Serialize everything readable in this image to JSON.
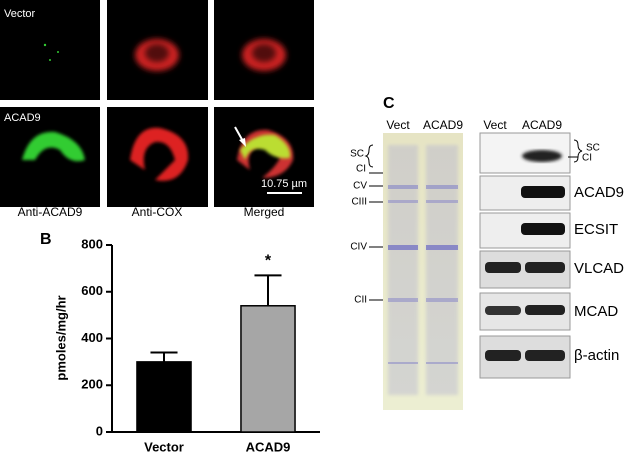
{
  "panel_a": {
    "row_labels": [
      "Vector",
      "ACAD9"
    ],
    "column_labels": [
      "Anti-ACAD9",
      "Anti-COX",
      "Merged"
    ],
    "scale_bar": "10.75 µm"
  },
  "chart_data": {
    "type": "bar",
    "panel_label": "B",
    "categories": [
      "Vector",
      "ACAD9"
    ],
    "values": [
      300,
      540
    ],
    "errors": [
      40,
      130
    ],
    "annotations": [
      null,
      "*"
    ],
    "colors": [
      "#000000",
      "#a6a6a6"
    ],
    "y_label": "pmoles/mg/hr",
    "ylim": [
      0,
      800
    ],
    "yticks": [
      0,
      200,
      400,
      600,
      800
    ]
  },
  "panel_c": {
    "label": "C",
    "gel": {
      "lanes": [
        "Vect",
        "ACAD9"
      ],
      "markers": [
        "SC",
        "CI",
        "CV",
        "CIII",
        "CIV",
        "CII"
      ]
    },
    "blot": {
      "lanes": [
        "Vect",
        "ACAD9"
      ],
      "rows": [
        "SC",
        "CI",
        "ACAD9",
        "ECSIT",
        "VLCAD",
        "MCAD",
        "β-actin"
      ]
    }
  }
}
